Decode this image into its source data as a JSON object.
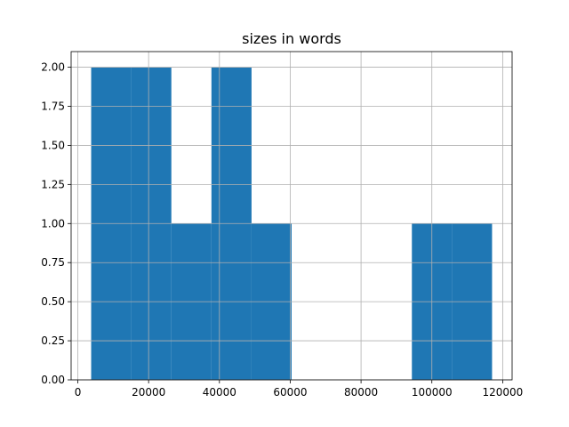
{
  "chart_data": {
    "type": "histogram",
    "title": "sizes in words",
    "bins": [
      3774,
      15097,
      26420,
      37743,
      49066,
      60389,
      71712,
      83035,
      94358,
      105681,
      117004
    ],
    "counts": [
      2,
      2,
      1,
      2,
      1,
      0,
      0,
      0,
      1,
      1
    ],
    "color": "#1f77b4",
    "xlim": [
      -1887,
      122665
    ],
    "xticks": [
      0,
      20000,
      40000,
      60000,
      80000,
      100000,
      120000
    ],
    "ylim": [
      0,
      2.1
    ],
    "yticks": [
      {
        "value": 0,
        "label": "0.00"
      },
      {
        "value": 0.25,
        "label": "0.25"
      },
      {
        "value": 0.5,
        "label": "0.50"
      },
      {
        "value": 0.75,
        "label": "0.75"
      },
      {
        "value": 1,
        "label": "1.00"
      },
      {
        "value": 1.25,
        "label": "1.25"
      },
      {
        "value": 1.5,
        "label": "1.50"
      },
      {
        "value": 1.75,
        "label": "1.75"
      },
      {
        "value": 2,
        "label": "2.00"
      }
    ],
    "grid": true
  }
}
